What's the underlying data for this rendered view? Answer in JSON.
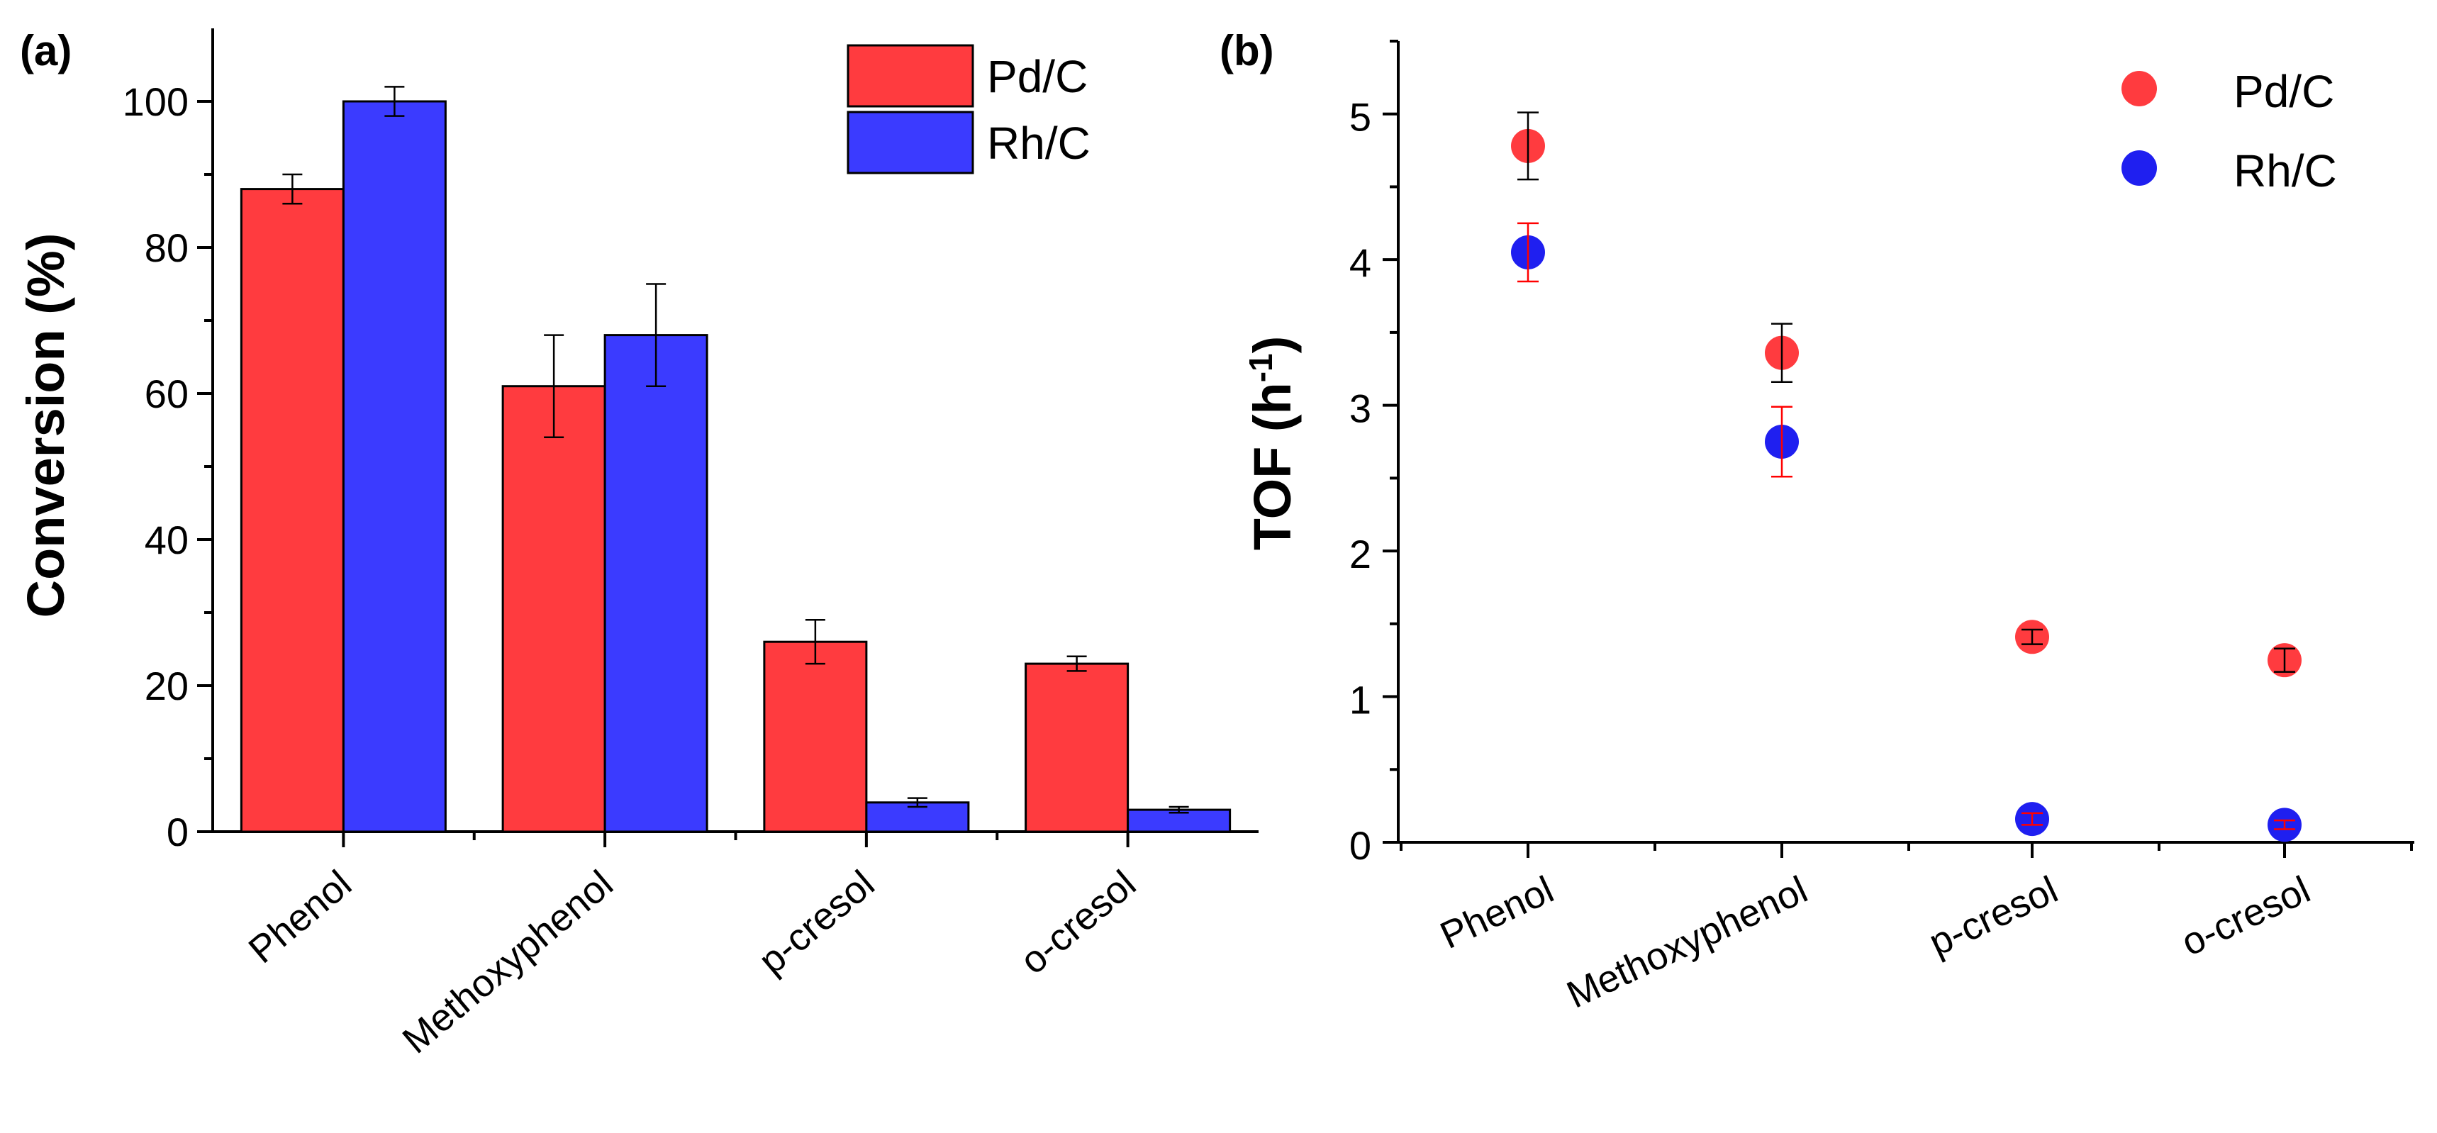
{
  "chart_data": [
    {
      "type": "bar",
      "panel_label": "(a)",
      "categories": [
        "Phenol",
        "Methoxyphenol",
        "p-cresol",
        "o-cresol"
      ],
      "ylabel": "Conversion (%)",
      "xlabel": "",
      "ylim": [
        0,
        110
      ],
      "yticks": [
        0,
        20,
        40,
        60,
        80,
        100
      ],
      "legend_position": "top-right",
      "series": [
        {
          "name": "Pd/C",
          "color": "#ff3b3f",
          "values": [
            88,
            61,
            26,
            23
          ],
          "errors": [
            2,
            7,
            3,
            1
          ]
        },
        {
          "name": "Rh/C",
          "color": "#3b3bff",
          "values": [
            100,
            68,
            4,
            3
          ],
          "errors": [
            2,
            7,
            0.6,
            0.4
          ]
        }
      ]
    },
    {
      "type": "scatter",
      "panel_label": "(b)",
      "categories": [
        "Phenol",
        "Methoxyphenol",
        "p-cresol",
        "o-cresol"
      ],
      "ylabel_main": "TOF (h",
      "ylabel_sup": "-1",
      "ylabel_end": ")",
      "xlabel": "",
      "ylim": [
        0,
        5.5
      ],
      "yticks": [
        0,
        1,
        2,
        3,
        4,
        5
      ],
      "legend_position": "top-right",
      "series": [
        {
          "name": "Pd/C",
          "color": "#ff3b3f",
          "errcolor": "#000000",
          "values": [
            4.78,
            3.36,
            1.41,
            1.25
          ],
          "errors": [
            0.23,
            0.2,
            0.05,
            0.08
          ]
        },
        {
          "name": "Rh/C",
          "color": "#1f1ff0",
          "errcolor": "#ff0000",
          "values": [
            4.05,
            2.75,
            0.16,
            0.12
          ],
          "errors": [
            0.2,
            0.24,
            0.04,
            0.03
          ]
        }
      ]
    }
  ]
}
